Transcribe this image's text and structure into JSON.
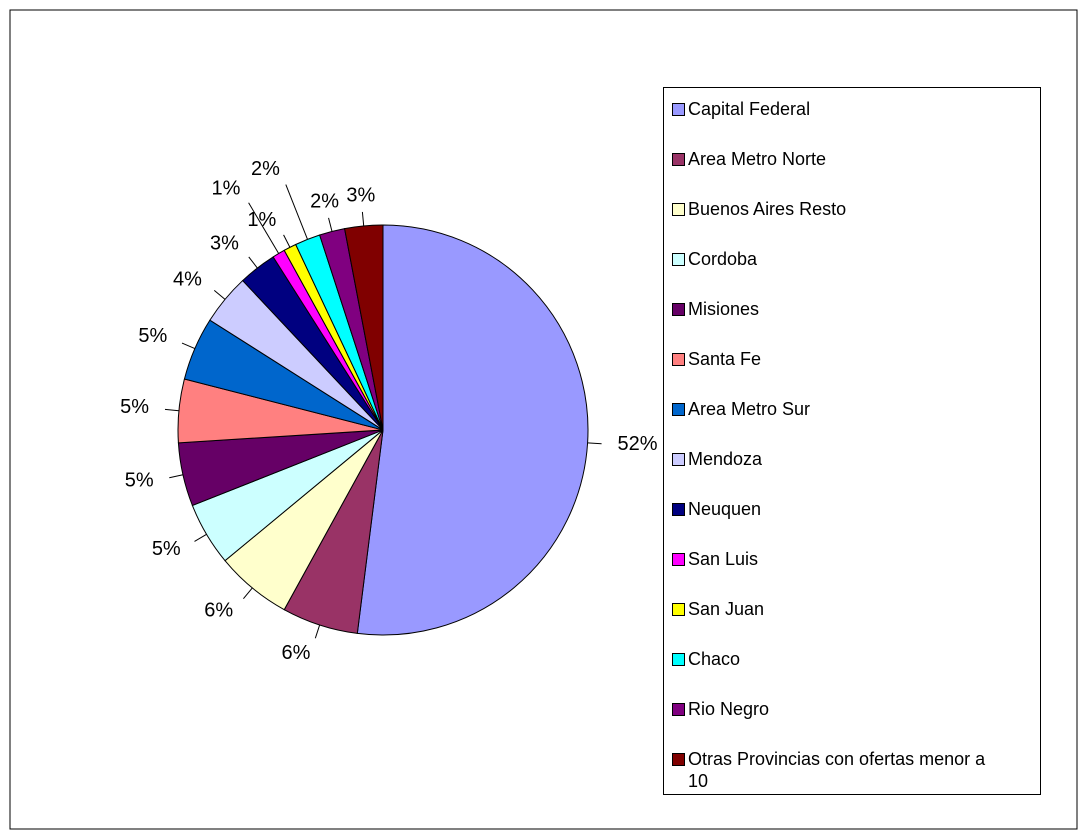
{
  "chart_data": {
    "type": "pie",
    "categories": [
      "Capital Federal",
      "Area Metro Norte",
      "Buenos Aires Resto",
      "Cordoba",
      "Misiones",
      "Santa Fe",
      "Area Metro Sur",
      "Mendoza",
      "Neuquen",
      "San Luis",
      "San Juan",
      "Chaco",
      "Rio Negro",
      "Otras Provincias con ofertas menor a 10"
    ],
    "values": [
      52,
      6,
      6,
      5,
      5,
      5,
      5,
      4,
      3,
      1,
      1,
      2,
      2,
      3
    ],
    "value_labels": [
      "52%",
      "6%",
      "6%",
      "5%",
      "5%",
      "5%",
      "5%",
      "4%",
      "3%",
      "1%",
      "1%",
      "2%",
      "2%",
      "3%"
    ],
    "colors": [
      "#9999ff",
      "#993366",
      "#ffffcc",
      "#ccffff",
      "#660066",
      "#ff8080",
      "#0066cc",
      "#ccccff",
      "#000080",
      "#ff00ff",
      "#ffff00",
      "#00ffff",
      "#800080",
      "#800000"
    ],
    "legend": "right"
  }
}
